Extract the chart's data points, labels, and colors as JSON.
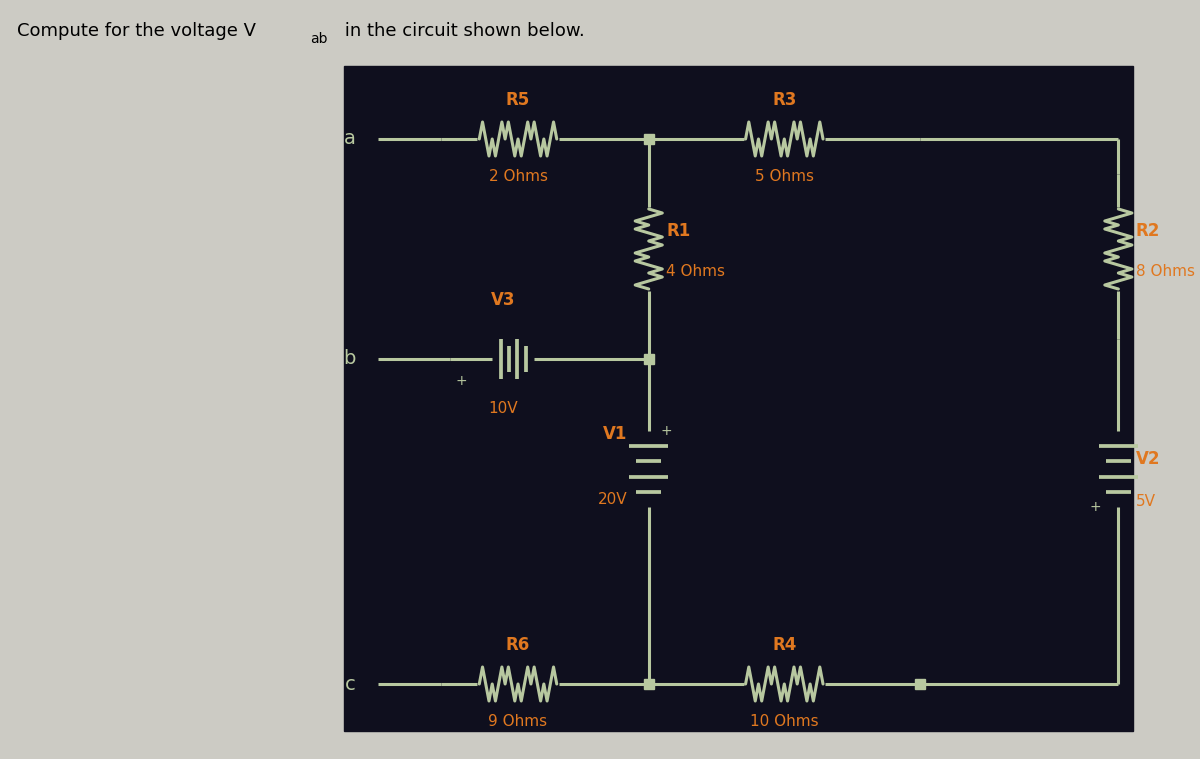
{
  "title_pre": "Compute for the voltage V",
  "title_sub": "ab",
  "title_post": " in the circuit shown below.",
  "outer_bg": "#cccbc4",
  "circuit_bg": "#0f0f1e",
  "wire_color": "#b8c8a0",
  "label_color": "#e07820",
  "node_color": "#b8c8a0",
  "R5_label": "R5",
  "R5_val": "2 Ohms",
  "R3_label": "R3",
  "R3_val": "5 Ohms",
  "R1_label": "R1",
  "R1_val": "4 Ohms",
  "R2_label": "R2",
  "R2_val": "8 Ohms",
  "R6_label": "R6",
  "R6_val": "9 Ohms",
  "R4_label": "R4",
  "R4_val": "10 Ohms",
  "V1_label": "V1",
  "V1_val": "20V",
  "V2_label": "V2",
  "V2_val": "5V",
  "V3_label": "V3",
  "V3_val": "10V",
  "node_a": "a",
  "node_b": "b",
  "node_c": "c"
}
